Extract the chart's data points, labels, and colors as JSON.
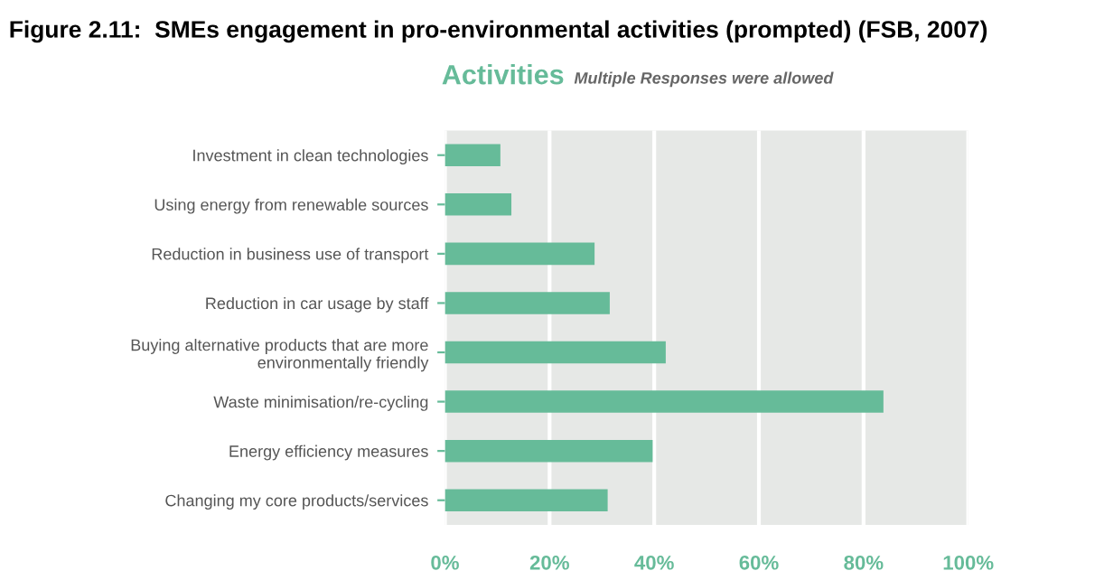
{
  "chart_data": {
    "type": "bar",
    "orientation": "horizontal",
    "title": "Figure 2.11:  SMEs engagement in pro-environmental activities (prompted) (FSB, 2007)",
    "subtitle": "Activities",
    "annotations": [
      "Multiple Responses were allowed"
    ],
    "categories": [
      "Investment in clean technologies",
      "Using energy from renewable sources",
      "Reduction in business use of transport",
      "Reduction in car usage by staff",
      "Buying alternative products that are more\nenvironmentally friendly",
      "Waste minimisation/re-cycling",
      "Energy efficiency measures",
      "Changing my core products/services"
    ],
    "values": [
      10.6,
      12.7,
      28.6,
      31.5,
      42.2,
      83.8,
      39.7,
      31.1
    ],
    "color": "#66bb99",
    "xlim": [
      0,
      100
    ],
    "xticks": [
      {
        "value": 0,
        "label": "0%"
      },
      {
        "value": 20,
        "label": "20%"
      },
      {
        "value": 40,
        "label": "40%"
      },
      {
        "value": 60,
        "label": "60%"
      },
      {
        "value": 80,
        "label": "80%"
      },
      {
        "value": 100,
        "label": "100%"
      }
    ],
    "grid": "x",
    "legend": false
  }
}
